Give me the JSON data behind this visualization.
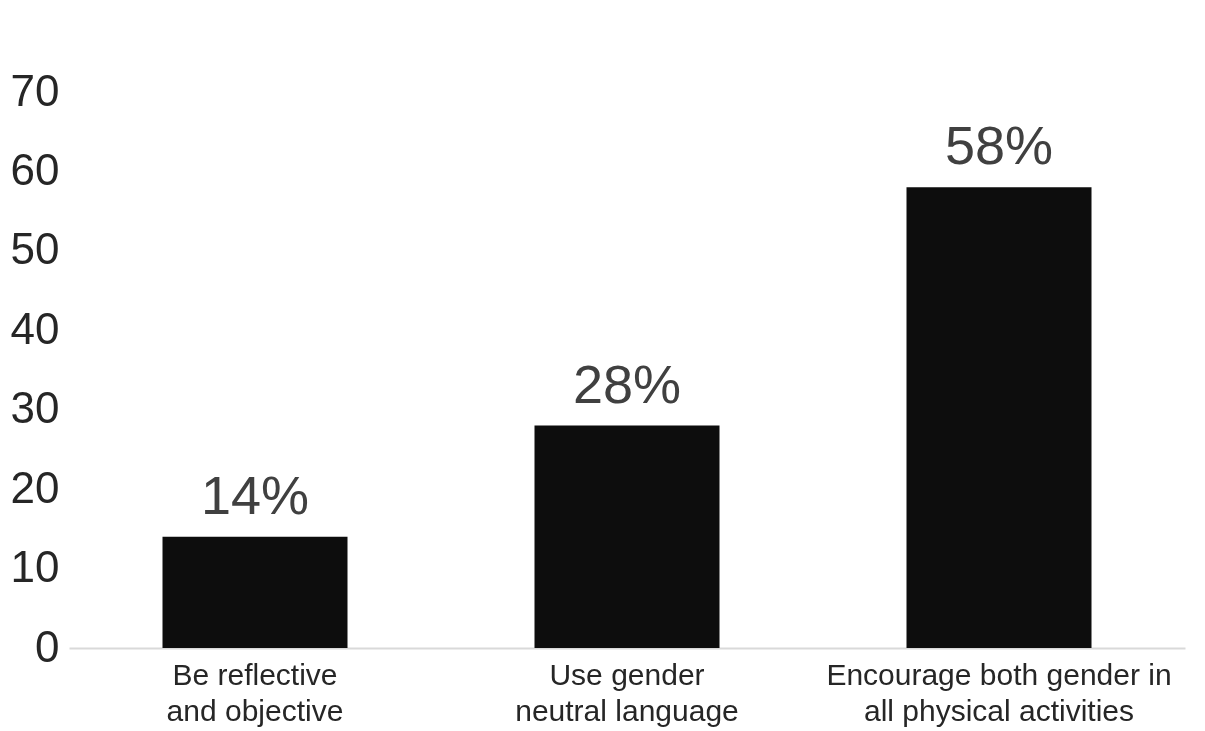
{
  "chart_data": {
    "type": "bar",
    "categories": [
      "Be reflective and objective",
      "Use gender neutral language",
      "Encourage both gender in all physical activities"
    ],
    "values": [
      14,
      28,
      58
    ],
    "value_labels": [
      "14%",
      "28%",
      "58%"
    ],
    "color": "#0d0d0d",
    "ylim": [
      0,
      70
    ],
    "yticks": [
      0,
      10,
      20,
      30,
      40,
      50,
      60,
      70
    ],
    "grid": false
  }
}
